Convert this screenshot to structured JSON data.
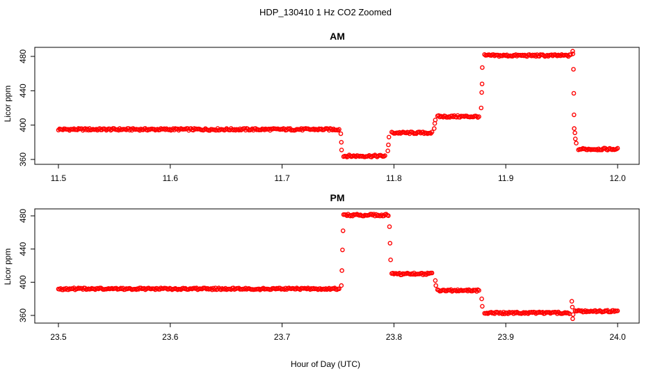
{
  "figure": {
    "title": "HDP_130410  1 Hz CO2 Zoomed",
    "xlabel": "Hour of Day (UTC)"
  },
  "chart_data": [
    {
      "type": "scatter",
      "title": "AM",
      "xlabel": "",
      "ylabel": "Licor ppm",
      "xlim": [
        11.5,
        12.0
      ],
      "ylim": [
        360,
        490
      ],
      "xticks": [
        "11.5",
        "11.6",
        "11.7",
        "11.8",
        "11.9",
        "12.0"
      ],
      "yticks": [
        "360",
        "400",
        "440",
        "480"
      ],
      "marker_color": "#ff0000",
      "segments": [
        {
          "x_start": 11.5,
          "x_end": 11.751,
          "y": 395
        },
        {
          "x_start": 11.755,
          "x_end": 11.792,
          "y": 364
        },
        {
          "x_start": 11.798,
          "x_end": 11.834,
          "y": 391
        },
        {
          "x_start": 11.839,
          "x_end": 11.876,
          "y": 410
        },
        {
          "x_start": 11.881,
          "x_end": 11.958,
          "y": 481
        },
        {
          "x_start": 11.965,
          "x_end": 12.0,
          "y": 372
        }
      ],
      "transitions": [
        {
          "x": 11.7525,
          "y": 390
        },
        {
          "x": 11.753,
          "y": 380
        },
        {
          "x": 11.7532,
          "y": 371
        },
        {
          "x": 11.7945,
          "y": 370
        },
        {
          "x": 11.795,
          "y": 377
        },
        {
          "x": 11.7955,
          "y": 386
        },
        {
          "x": 11.836,
          "y": 396
        },
        {
          "x": 11.8365,
          "y": 402
        },
        {
          "x": 11.837,
          "y": 406
        },
        {
          "x": 11.878,
          "y": 420
        },
        {
          "x": 11.8785,
          "y": 438
        },
        {
          "x": 11.8788,
          "y": 448
        },
        {
          "x": 11.879,
          "y": 467
        },
        {
          "x": 11.9598,
          "y": 486
        },
        {
          "x": 11.96,
          "y": 483
        },
        {
          "x": 11.9605,
          "y": 465
        },
        {
          "x": 11.9608,
          "y": 437
        },
        {
          "x": 11.961,
          "y": 412
        },
        {
          "x": 11.9612,
          "y": 396
        },
        {
          "x": 11.9618,
          "y": 391
        },
        {
          "x": 11.9622,
          "y": 384
        },
        {
          "x": 11.963,
          "y": 379
        }
      ]
    },
    {
      "type": "scatter",
      "title": "PM",
      "xlabel": "",
      "ylabel": "Licor ppm",
      "xlim": [
        23.5,
        24.0
      ],
      "ylim": [
        350,
        490
      ],
      "xticks": [
        "23.5",
        "23.6",
        "23.7",
        "23.8",
        "23.9",
        "24.0"
      ],
      "yticks": [
        "360",
        "400",
        "440",
        "480"
      ],
      "marker_color": "#ff0000",
      "segments": [
        {
          "x_start": 23.5,
          "x_end": 23.751,
          "y": 392
        },
        {
          "x_start": 23.755,
          "x_end": 23.795,
          "y": 481
        },
        {
          "x_start": 23.798,
          "x_end": 23.834,
          "y": 410
        },
        {
          "x_start": 23.839,
          "x_end": 23.876,
          "y": 390
        },
        {
          "x_start": 23.881,
          "x_end": 23.957,
          "y": 363
        },
        {
          "x_start": 23.962,
          "x_end": 24.0,
          "y": 365
        }
      ],
      "transitions": [
        {
          "x": 23.753,
          "y": 396
        },
        {
          "x": 23.7535,
          "y": 414
        },
        {
          "x": 23.754,
          "y": 439
        },
        {
          "x": 23.7545,
          "y": 462
        },
        {
          "x": 23.796,
          "y": 467
        },
        {
          "x": 23.7965,
          "y": 447
        },
        {
          "x": 23.797,
          "y": 427
        },
        {
          "x": 23.837,
          "y": 402
        },
        {
          "x": 23.8375,
          "y": 396
        },
        {
          "x": 23.8785,
          "y": 380
        },
        {
          "x": 23.879,
          "y": 371
        },
        {
          "x": 23.959,
          "y": 377
        },
        {
          "x": 23.9595,
          "y": 370
        },
        {
          "x": 23.9598,
          "y": 356
        },
        {
          "x": 23.9602,
          "y": 361
        }
      ]
    }
  ]
}
